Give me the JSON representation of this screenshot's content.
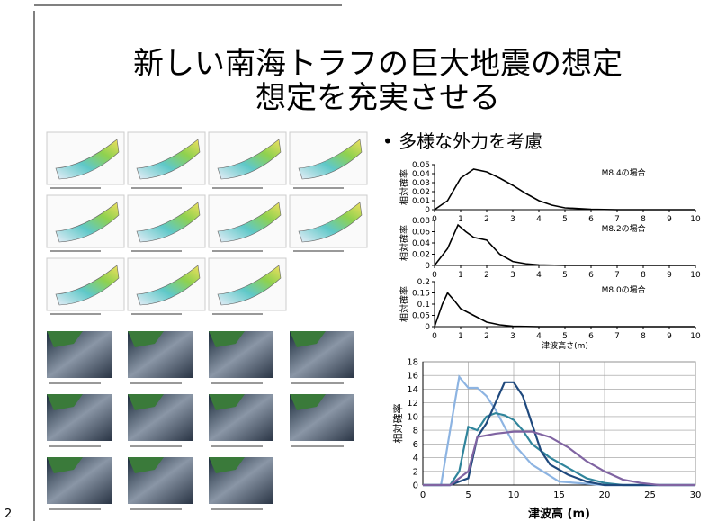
{
  "slide": {
    "title_line1": "新しい南海トラフの巨大地震の想定",
    "title_line2": "想定を充実させる",
    "bullet": "多様な外力を考慮",
    "page_number": "2"
  },
  "chart_data": [
    {
      "type": "line",
      "ylabel": "相対確率",
      "annotation": "M8.4の場合",
      "xlim": [
        0,
        10
      ],
      "xticks": [
        0,
        1,
        2,
        3,
        4,
        5,
        6,
        7,
        8,
        9,
        10
      ],
      "ylim": [
        0,
        0.05
      ],
      "yticks": [
        0,
        0.01,
        0.02,
        0.03,
        0.04,
        0.05
      ],
      "series": [
        {
          "color": "#000000",
          "x": [
            0,
            0.5,
            1,
            1.5,
            2,
            2.5,
            3,
            3.5,
            4,
            4.5,
            5,
            6,
            7,
            10
          ],
          "values": [
            0,
            0.01,
            0.035,
            0.045,
            0.042,
            0.035,
            0.027,
            0.018,
            0.01,
            0.005,
            0.002,
            0.0005,
            0,
            0
          ]
        }
      ]
    },
    {
      "type": "line",
      "ylabel": "相対確率",
      "annotation": "M8.2の場合",
      "xlim": [
        0,
        10
      ],
      "xticks": [
        0,
        1,
        2,
        3,
        4,
        5,
        6,
        7,
        8,
        9,
        10
      ],
      "ylim": [
        0,
        0.08
      ],
      "yticks": [
        0,
        0.02,
        0.04,
        0.06,
        0.08
      ],
      "series": [
        {
          "color": "#000000",
          "x": [
            0,
            0.5,
            0.9,
            1.2,
            1.5,
            2,
            2.5,
            3,
            3.5,
            4,
            5,
            10
          ],
          "values": [
            0,
            0.03,
            0.072,
            0.06,
            0.05,
            0.045,
            0.02,
            0.007,
            0.003,
            0.001,
            0,
            0
          ]
        }
      ]
    },
    {
      "type": "line",
      "ylabel": "相対確率",
      "annotation": "M8.0の場合",
      "xlabel": "津波高さ(m)",
      "xlim": [
        0,
        10
      ],
      "xticks": [
        0,
        1,
        2,
        3,
        4,
        5,
        6,
        7,
        8,
        9,
        10
      ],
      "ylim": [
        0,
        0.2
      ],
      "yticks": [
        0,
        0.05,
        0.1,
        0.15,
        0.2
      ],
      "series": [
        {
          "color": "#000000",
          "x": [
            0,
            0.3,
            0.5,
            0.8,
            1,
            1.5,
            2,
            2.5,
            3,
            4,
            10
          ],
          "values": [
            0,
            0.1,
            0.15,
            0.11,
            0.08,
            0.05,
            0.02,
            0.008,
            0.002,
            0,
            0
          ]
        }
      ]
    },
    {
      "type": "line",
      "ylabel": "相対確率",
      "xlabel": "津波高 (m)",
      "grid": true,
      "xlim": [
        0,
        30
      ],
      "xticks": [
        0,
        5,
        10,
        15,
        20,
        25,
        30
      ],
      "ylim": [
        0,
        18
      ],
      "yticks": [
        0,
        2,
        4,
        6,
        8,
        10,
        12,
        14,
        16,
        18
      ],
      "series": [
        {
          "color": "#8db4e2",
          "x": [
            0,
            2,
            3,
            4,
            5,
            6,
            7,
            8,
            10,
            12,
            15,
            20,
            30
          ],
          "values": [
            0,
            0,
            8,
            15.8,
            14.2,
            14.2,
            13,
            11,
            6,
            3,
            0.5,
            0,
            0
          ]
        },
        {
          "color": "#31859c",
          "x": [
            0,
            3,
            4,
            5,
            6,
            7,
            8,
            9,
            10,
            11,
            12,
            14,
            16,
            18,
            20,
            22,
            30
          ],
          "values": [
            0,
            0,
            2,
            8.5,
            8,
            10,
            10.5,
            10.2,
            9.5,
            8,
            6,
            4,
            2.5,
            1,
            0.3,
            0,
            0
          ]
        },
        {
          "color": "#1f497d",
          "x": [
            0,
            3,
            5,
            6,
            7,
            8,
            9,
            10,
            11,
            12,
            13,
            14,
            16,
            18,
            20,
            30
          ],
          "values": [
            0,
            0,
            1,
            7,
            9,
            12,
            15,
            15,
            13,
            9,
            5,
            3,
            1.5,
            0.5,
            0,
            0
          ]
        },
        {
          "color": "#8064a2",
          "x": [
            0,
            3,
            5,
            6,
            8,
            10,
            12,
            14,
            16,
            18,
            20,
            22,
            24,
            26,
            30
          ],
          "values": [
            0,
            0,
            2,
            7,
            7.5,
            7.8,
            7.8,
            7,
            5.5,
            3.5,
            2,
            0.8,
            0.3,
            0,
            0
          ]
        }
      ]
    }
  ]
}
